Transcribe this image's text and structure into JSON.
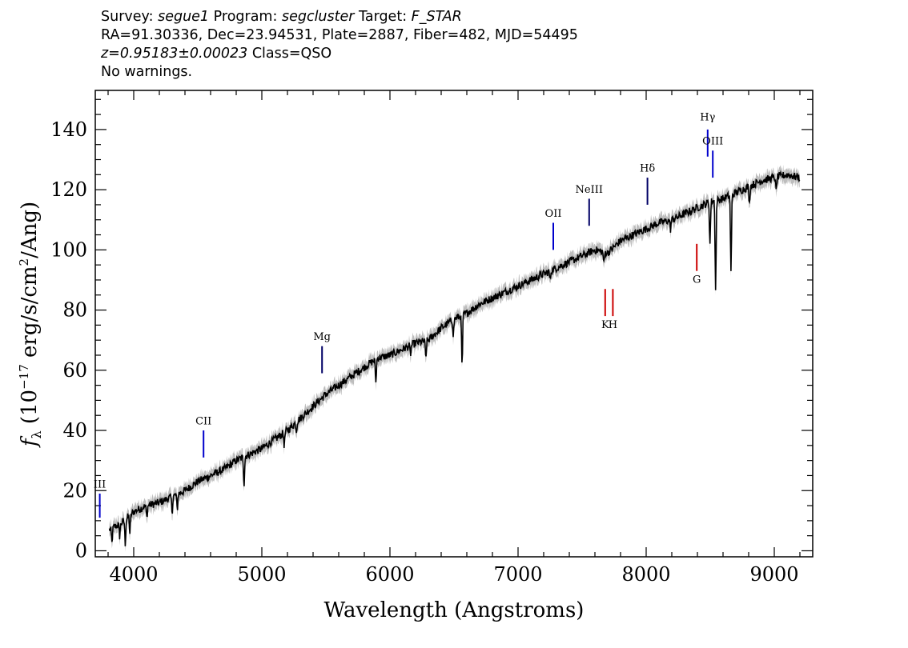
{
  "header": {
    "survey_label": "Survey:",
    "survey": "segue1",
    "program_label": "Program:",
    "program": "segcluster",
    "target_label": "Target:",
    "target": "F_STAR",
    "line2": "RA=91.30336, Dec=23.94531, Plate=2887, Fiber=482, MJD=54495",
    "redshift": "z=0.95183±0.00023",
    "class": "Class=QSO",
    "warnings": "No warnings."
  },
  "chart_data": {
    "type": "line",
    "xlabel": "Wavelength (Angstroms)",
    "ylabel_main": "f",
    "ylabel_sub": "λ",
    "ylabel_rest": " (10",
    "ylabel_exp": "−17",
    "ylabel_units": " erg/s/cm",
    "ylabel_sq": "2",
    "ylabel_end": "/Ang)",
    "xlim": [
      3700,
      9300
    ],
    "ylim": [
      -2,
      153
    ],
    "xticks": [
      4000,
      5000,
      6000,
      7000,
      8000,
      9000
    ],
    "yticks": [
      0,
      20,
      40,
      60,
      80,
      100,
      120,
      140
    ],
    "series": [
      {
        "x": [
          3810,
          3850,
          3900,
          3950,
          4000,
          4100,
          4200,
          4300,
          4400,
          4500,
          4600,
          4700,
          4800,
          4900,
          5000,
          5100,
          5200,
          5300,
          5400,
          5500,
          5600,
          5700,
          5800,
          5900,
          6000,
          6100,
          6200,
          6300,
          6400,
          6500,
          6600,
          6700,
          6800,
          6900,
          7000,
          7100,
          7200,
          7300,
          7400,
          7500,
          7600,
          7700,
          7800,
          7900,
          8000,
          8100,
          8200,
          8300,
          8400,
          8500,
          8600,
          8700,
          8800,
          8900,
          9000,
          9100,
          9200
        ],
        "y": [
          7,
          8,
          9,
          11,
          13,
          15,
          16,
          18,
          20,
          23,
          25,
          27,
          30,
          32,
          34,
          37,
          40,
          44,
          48,
          52,
          55,
          58,
          61,
          64,
          65,
          67,
          69,
          70,
          74,
          77,
          79,
          82,
          84,
          86,
          88,
          90,
          92,
          94,
          96,
          98,
          100,
          99,
          103,
          105,
          107,
          109,
          110,
          112,
          114,
          116,
          117,
          119,
          121,
          123,
          124,
          125,
          124
        ]
      }
    ],
    "absorption": [
      {
        "x": 3830,
        "depth": 5
      },
      {
        "x": 3890,
        "depth": 4
      },
      {
        "x": 3934,
        "depth": 8
      },
      {
        "x": 3970,
        "depth": 6
      },
      {
        "x": 4102,
        "depth": 4
      },
      {
        "x": 4300,
        "depth": 5
      },
      {
        "x": 4340,
        "depth": 5
      },
      {
        "x": 4861,
        "depth": 9
      },
      {
        "x": 5175,
        "depth": 4
      },
      {
        "x": 5270,
        "depth": 3
      },
      {
        "x": 5890,
        "depth": 8
      },
      {
        "x": 6160,
        "depth": 3
      },
      {
        "x": 6280,
        "depth": 6
      },
      {
        "x": 6495,
        "depth": 5
      },
      {
        "x": 6563,
        "depth": 17
      },
      {
        "x": 7250,
        "depth": 3
      },
      {
        "x": 7670,
        "depth": 4
      },
      {
        "x": 8190,
        "depth": 3
      },
      {
        "x": 8498,
        "depth": 14
      },
      {
        "x": 8542,
        "depth": 30
      },
      {
        "x": 8662,
        "depth": 26
      },
      {
        "x": 8806,
        "depth": 6
      },
      {
        "x": 9015,
        "depth": 5
      }
    ],
    "emission_lines": [
      {
        "label": "Hγ",
        "x": 8480,
        "y1": 131,
        "y2": 140,
        "color": "#0000cc",
        "label_y": 143
      },
      {
        "label": "OIII",
        "x": 8520,
        "y1": 124,
        "y2": 133,
        "color": "#0000cc",
        "label_y": 135
      },
      {
        "label": "Hδ",
        "x": 8010,
        "y1": 115,
        "y2": 124,
        "color": "#000066",
        "label_y": 126
      },
      {
        "label": "NeIII",
        "x": 7555,
        "y1": 108,
        "y2": 117,
        "color": "#000066",
        "label_y": 119
      },
      {
        "label": "OII",
        "x": 7275,
        "y1": 100,
        "y2": 109,
        "color": "#0000cc",
        "label_y": 111
      },
      {
        "label": "Mg",
        "x": 5470,
        "y1": 59,
        "y2": 68,
        "color": "#000066",
        "label_y": 70
      },
      {
        "label": "CII",
        "x": 4545,
        "y1": 31,
        "y2": 40,
        "color": "#0000cc",
        "label_y": 42
      },
      {
        "label": "III",
        "x": 3735,
        "y1": 11,
        "y2": 19,
        "color": "#0000cc",
        "label_y": 21
      }
    ],
    "absorption_lines": [
      {
        "label": "K",
        "x": 7680,
        "y1": 78,
        "y2": 87,
        "color": "#cc0000",
        "label_y": 74
      },
      {
        "label": "H",
        "x": 7740,
        "y1": 78,
        "y2": 87,
        "color": "#cc0000",
        "label_y": 74
      },
      {
        "label": "G",
        "x": 8395,
        "y1": 93,
        "y2": 102,
        "color": "#cc0000",
        "label_y": 89
      }
    ]
  }
}
